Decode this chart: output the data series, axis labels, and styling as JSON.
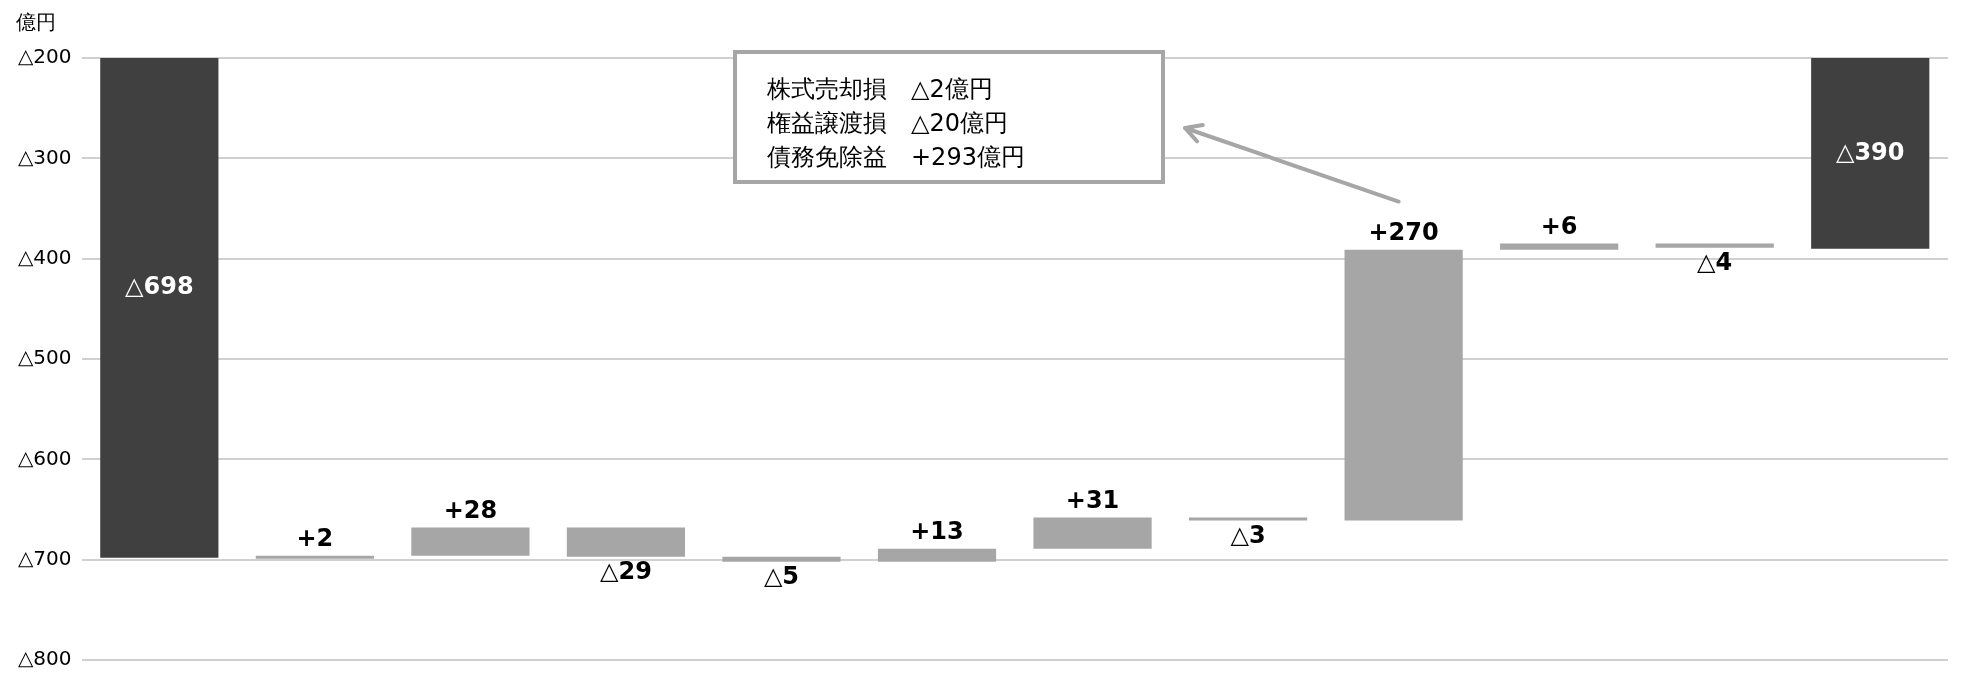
{
  "chart_data": {
    "type": "bar",
    "ylabel": "億円",
    "categories": [
      null,
      null,
      null,
      null,
      null,
      null,
      null,
      null,
      null,
      null,
      null,
      null
    ],
    "values": [
      -698,
      2,
      28,
      -29,
      -5,
      13,
      31,
      -3,
      270,
      6,
      -4,
      -390
    ],
    "base": [
      0,
      -698,
      -696,
      -668,
      -697,
      -702,
      -689,
      -658,
      -661,
      -391,
      -385,
      0
    ],
    "colors": [
      "#404040",
      "#a6a6a6",
      "#a6a6a6",
      "#a6a6a6",
      "#a6a6a6",
      "#a6a6a6",
      "#a6a6a6",
      "#a6a6a6",
      "#a6a6a6",
      "#a6a6a6",
      "#a6a6a6",
      "#404040"
    ],
    "value_labels": [
      "△698",
      "+2",
      "+28",
      "△29",
      "△5",
      "+13",
      "+31",
      "△3",
      "+270",
      "+6",
      "△4",
      "△390"
    ],
    "ylim": [
      -800,
      -200
    ],
    "yticks": [
      {
        "value": -800,
        "label": "△800"
      },
      {
        "value": -700,
        "label": "△700"
      },
      {
        "value": -600,
        "label": "△600"
      },
      {
        "value": -500,
        "label": "△500"
      },
      {
        "value": -400,
        "label": "△400"
      },
      {
        "value": -300,
        "label": "△300"
      },
      {
        "value": -200,
        "label": "△200"
      }
    ],
    "annotations": [
      "株式売却損　△2億円",
      "権益譲渡損　△20億円",
      "債務免除益　+293億円"
    ],
    "grid": "y",
    "legend": false
  }
}
